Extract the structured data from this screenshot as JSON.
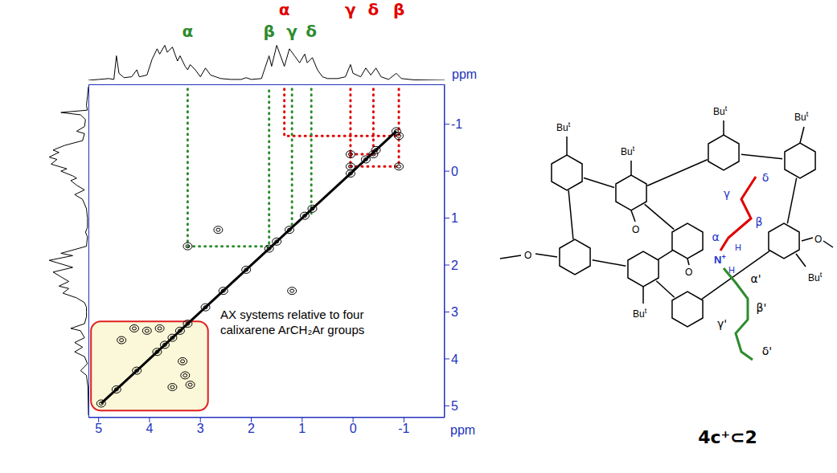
{
  "chart_data": {
    "type": "scatter",
    "x_label": "ppm",
    "y_label": "ppm",
    "xlim": [
      5.2,
      -1.8
    ],
    "xticks": [
      5,
      4,
      3,
      2,
      1,
      0,
      -1
    ],
    "ylim": [
      5.25,
      -1.85
    ],
    "yticks": [
      -1,
      0,
      1,
      2,
      3,
      4,
      5
    ],
    "diagonal": {
      "color": "#000000",
      "marker": "circle",
      "line_style": "solid",
      "x": [
        4.95,
        4.65,
        4.25,
        3.85,
        3.7,
        3.55,
        3.4,
        3.25,
        2.9,
        2.55,
        2.1,
        1.65,
        1.5,
        1.25,
        0.95,
        0.8,
        0.05,
        -0.25,
        -0.45,
        -0.85
      ],
      "y": [
        4.95,
        4.65,
        4.25,
        3.85,
        3.7,
        3.55,
        3.4,
        3.25,
        2.9,
        2.55,
        2.1,
        1.65,
        1.5,
        1.25,
        0.95,
        0.8,
        0.05,
        -0.25,
        -0.45,
        -0.85
      ]
    },
    "cross_peaks": {
      "color": "#000000",
      "marker": "circle",
      "x": [
        -0.9,
        0.05,
        -0.4,
        0.05,
        -0.9,
        3.25,
        2.65,
        1.2,
        4.55,
        4.3,
        4.05,
        3.8,
        3.55,
        3.3,
        3.35,
        3.2
      ],
      "y": [
        -0.75,
        -0.36,
        -0.36,
        -0.1,
        -0.1,
        1.6,
        1.25,
        2.55,
        3.6,
        3.35,
        3.4,
        3.35,
        4.6,
        4.35,
        4.05,
        4.55
      ]
    },
    "assignments": [
      {
        "color": "#e00000",
        "line_style": "dotted",
        "labels": [
          {
            "text": "α",
            "x": 1.35
          },
          {
            "text": "γ",
            "x": 0.05
          },
          {
            "text": "δ",
            "x": -0.4
          },
          {
            "text": "β",
            "x": -0.9
          }
        ],
        "guides": [
          [
            [
              1.35,
              -1.75
            ],
            [
              1.35,
              -0.75
            ],
            [
              -0.9,
              -0.75
            ]
          ],
          [
            [
              0.05,
              -1.75
            ],
            [
              0.05,
              -0.1
            ]
          ],
          [
            [
              -0.4,
              -1.75
            ],
            [
              -0.4,
              -0.36
            ]
          ],
          [
            [
              -0.9,
              -1.75
            ],
            [
              -0.9,
              -0.1
            ]
          ],
          [
            [
              0.05,
              -0.36
            ],
            [
              -0.4,
              -0.36
            ]
          ],
          [
            [
              0.05,
              -0.1
            ],
            [
              -0.9,
              -0.1
            ]
          ]
        ]
      },
      {
        "color": "#2e8b2e",
        "line_style": "dotted",
        "labels": [
          {
            "text": "α",
            "x": 3.25
          },
          {
            "text": "β",
            "x": 1.65
          },
          {
            "text": "γ",
            "x": 1.2
          },
          {
            "text": "δ",
            "x": 0.82
          }
        ],
        "guides": [
          [
            [
              3.25,
              -1.75
            ],
            [
              3.25,
              1.6
            ],
            [
              1.65,
              1.6
            ],
            [
              1.65,
              -1.75
            ]
          ],
          [
            [
              1.2,
              -1.75
            ],
            [
              1.2,
              1.15
            ]
          ],
          [
            [
              0.82,
              -1.75
            ],
            [
              0.82,
              0.95
            ]
          ]
        ]
      }
    ],
    "projection": {
      "color": "#000000",
      "ylim": [
        0,
        1.8
      ],
      "x": [
        5.2,
        5.0,
        4.8,
        4.7,
        4.65,
        4.6,
        4.5,
        4.35,
        4.25,
        4.2,
        4.05,
        3.95,
        3.85,
        3.8,
        3.7,
        3.65,
        3.55,
        3.45,
        3.4,
        3.3,
        3.25,
        3.2,
        3.1,
        3.0,
        2.9,
        2.8,
        2.7,
        2.6,
        2.4,
        2.2,
        2.1,
        2.0,
        1.8,
        1.65,
        1.6,
        1.5,
        1.45,
        1.35,
        1.25,
        1.15,
        1.05,
        0.95,
        0.9,
        0.8,
        0.7,
        0.6,
        0.5,
        0.4,
        0.3,
        0.15,
        0.05,
        0.0,
        -0.15,
        -0.25,
        -0.35,
        -0.45,
        -0.55,
        -0.7,
        -0.85,
        -0.95,
        -1.2,
        -1.8
      ],
      "values": [
        0.0,
        0.02,
        0.04,
        0.02,
        0.56,
        0.16,
        0.06,
        0.08,
        0.24,
        0.08,
        0.12,
        0.48,
        0.72,
        0.6,
        0.8,
        0.64,
        0.76,
        0.44,
        0.56,
        0.32,
        0.24,
        0.36,
        0.24,
        0.08,
        0.28,
        0.12,
        0.08,
        0.04,
        0.02,
        0.02,
        0.06,
        0.02,
        0.04,
        0.56,
        0.32,
        0.8,
        0.64,
        0.32,
        0.72,
        0.56,
        0.4,
        0.6,
        0.4,
        0.52,
        0.24,
        0.08,
        0.04,
        0.04,
        0.04,
        0.08,
        0.36,
        0.16,
        0.08,
        0.28,
        0.12,
        0.28,
        0.08,
        0.02,
        0.16,
        0.04,
        0.01,
        0.0
      ]
    },
    "annotation": {
      "text": "AX systems relative to four calixarene ArCH₂Ar groups",
      "color": "#e02020",
      "fill": "#faf7d2",
      "region": {
        "x": [
          5.15,
          2.85
        ],
        "y": [
          3.2,
          5.1
        ]
      }
    }
  },
  "structure": {
    "label": "4c⁺⊂2",
    "tert_butyl": {
      "base": "Bu",
      "sup": "t"
    },
    "red_chain": {
      "color": "#e00000",
      "label_color": "#2233cc",
      "labels": [
        "α",
        "β",
        "γ",
        "δ"
      ]
    },
    "green_chain": {
      "color": "#2e8b2e",
      "label_color": "#000000",
      "labels": [
        "α'",
        "β'",
        "γ'",
        "δ'"
      ]
    },
    "nitrogen": {
      "base": "N",
      "sup": "+"
    },
    "hydrogen": "H",
    "oxygen": "O"
  }
}
